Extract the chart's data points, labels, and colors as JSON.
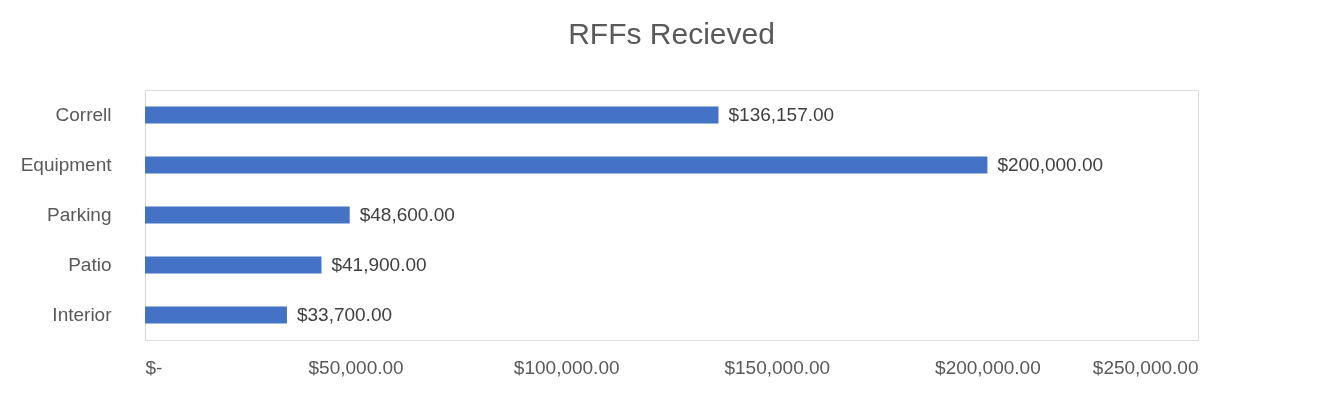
{
  "chart_data": {
    "type": "bar",
    "title": "RFFs Recieved",
    "orientation": "horizontal",
    "categories": [
      "Correll",
      "Equipment",
      "Parking",
      "Patio",
      "Interior"
    ],
    "values": [
      136157,
      200000,
      48600,
      41900,
      33700
    ],
    "value_labels": [
      "$136,157.00",
      "$200,000.00",
      "$48,600.00",
      "$41,900.00",
      "$33,700.00"
    ],
    "color": "#4472c4",
    "xlim": [
      0,
      250000
    ],
    "xticks": [
      {
        "value": 0,
        "label": "$-"
      },
      {
        "value": 50000,
        "label": "$50,000.00"
      },
      {
        "value": 100000,
        "label": "$100,000.00"
      },
      {
        "value": 150000,
        "label": "$150,000.00"
      },
      {
        "value": 200000,
        "label": "$200,000.00"
      },
      {
        "value": 250000,
        "label": "$250,000.00"
      }
    ]
  }
}
